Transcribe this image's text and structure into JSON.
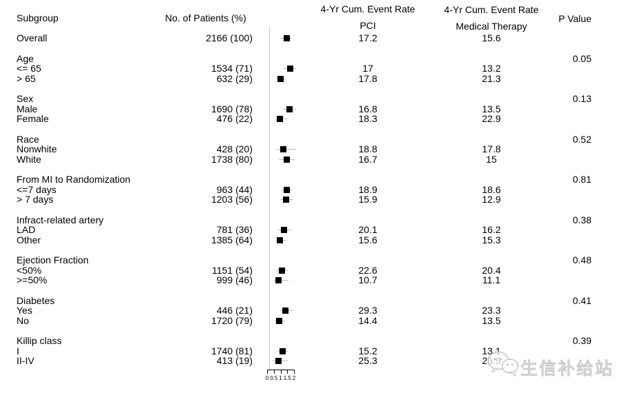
{
  "header": {
    "subgroup": "Subgroup",
    "patients": "No. of Patients (%)",
    "rate_title_pci": "4-Yr Cum. Event Rate",
    "rate_title_mt": "4-Yr Cum. Event Rate",
    "rate_sub_pci": "PCI",
    "rate_sub_mt": "Medical Therapy",
    "p_value": "P Value"
  },
  "watermark": {
    "text": "生信补给站",
    "icon": "wechat-chat-bubbles"
  },
  "colors": {
    "background": "#ffffff",
    "text": "#000000",
    "marker": "#000000",
    "whisker": "#b4b4b4",
    "spine": "#c9c9c9",
    "watermark": "#d9d9d9"
  },
  "chart_data": {
    "type": "scatter",
    "subtype": "forest-plot",
    "title": "",
    "xlabel": "",
    "x_ticks": [
      0,
      0.5,
      1,
      1.5,
      2
    ],
    "x_tick_labels": [
      "0",
      "0.5",
      "1",
      "1.5",
      "2"
    ],
    "x_range": [
      0,
      2
    ],
    "grid": false,
    "legend": "none",
    "columns": [
      "Subgroup",
      "No. of Patients (%)",
      "4-Yr Cum. Event Rate PCI",
      "4-Yr Cum. Event Rate Medical Therapy",
      "P Value"
    ],
    "overall": {
      "label": "Overall",
      "patients": "2166 (100)",
      "pci": "17.2",
      "mt": "15.6",
      "est": 1.44,
      "lo": 0.97,
      "hi": 1.81
    },
    "groups": [
      {
        "label": "Age",
        "p": "0.05",
        "items": [
          {
            "label": "<= 65",
            "patients": "1534 (71)",
            "pci": "17",
            "mt": "13.2",
            "est": 1.73,
            "lo": 1.23,
            "hi": 2.15
          },
          {
            "label": "> 65",
            "patients": "632 (29)",
            "pci": "17.8",
            "mt": "21.3",
            "est": 1.01,
            "lo": 0.67,
            "hi": 1.44
          }
        ]
      },
      {
        "label": "Sex",
        "p": "0.13",
        "items": [
          {
            "label": "Male",
            "patients": "1690 (78)",
            "pci": "16.8",
            "mt": "13.5",
            "est": 1.69,
            "lo": 1.18,
            "hi": 2.15
          },
          {
            "label": "Female",
            "patients": "476 (22)",
            "pci": "18.3",
            "mt": "22.9",
            "est": 0.94,
            "lo": 0.62,
            "hi": 1.47
          }
        ]
      },
      {
        "label": "Race",
        "p": "0.52",
        "items": [
          {
            "label": "Nonwhite",
            "patients": "428 (20)",
            "pci": "18.8",
            "mt": "17.8",
            "est": 1.23,
            "lo": 0.65,
            "hi": 2.09
          },
          {
            "label": "White",
            "patients": "1738 (80)",
            "pci": "16.7",
            "mt": "15",
            "est": 1.45,
            "lo": 0.89,
            "hi": 1.98
          }
        ]
      },
      {
        "label": "From MI to Randomization",
        "p": "0.81",
        "items": [
          {
            "label": "<=7 days",
            "patients": "963 (44)",
            "pci": "18.9",
            "mt": "18.6",
            "est": 1.47,
            "lo": 1.09,
            "hi": 1.86
          },
          {
            "label": "> 7 days",
            "patients": "1203 (56)",
            "pci": "15.9",
            "mt": "12.9",
            "est": 1.4,
            "lo": 0.97,
            "hi": 1.9
          }
        ]
      },
      {
        "label": "Infract-related artery",
        "p": "0.38",
        "items": [
          {
            "label": "LAD",
            "patients": "781 (36)",
            "pci": "20.1",
            "mt": "16.2",
            "est": 1.27,
            "lo": 0.84,
            "hi": 1.78
          },
          {
            "label": "Other",
            "patients": "1385 (64)",
            "pci": "15.6",
            "mt": "15.3",
            "est": 0.96,
            "lo": 0.67,
            "hi": 1.44
          }
        ]
      },
      {
        "label": "Ejection Fraction",
        "p": "0.48",
        "items": [
          {
            "label": "<50%",
            "patients": "1151 (54)",
            "pci": "22.6",
            "mt": "20.4",
            "est": 1.09,
            "lo": 0.72,
            "hi": 1.52
          },
          {
            "label": ">=50%",
            "patients": "999 (46)",
            "pci": "10.7",
            "mt": "11.1",
            "est": 0.84,
            "lo": 0.5,
            "hi": 1.61
          }
        ]
      },
      {
        "label": "Diabetes",
        "p": "0.41",
        "items": [
          {
            "label": "Yes",
            "patients": "446 (21)",
            "pci": "29.3",
            "mt": "23.3",
            "est": 1.35,
            "lo": 0.96,
            "hi": 1.91
          },
          {
            "label": "No",
            "patients": "1720 (79)",
            "pci": "14.4",
            "mt": "13.5",
            "est": 0.89,
            "lo": 0.58,
            "hi": 1.27
          }
        ]
      },
      {
        "label": "Killip class",
        "p": "0.39",
        "items": [
          {
            "label": "I",
            "patients": "1740 (81)",
            "pci": "15.2",
            "mt": "13.1",
            "est": 1.13,
            "lo": 0.78,
            "hi": 1.52
          },
          {
            "label": "II-IV",
            "patients": "413 (19)",
            "pci": "25.3",
            "mt": "26.9",
            "est": 0.84,
            "lo": 0.41,
            "hi": 1.52
          }
        ]
      }
    ]
  }
}
